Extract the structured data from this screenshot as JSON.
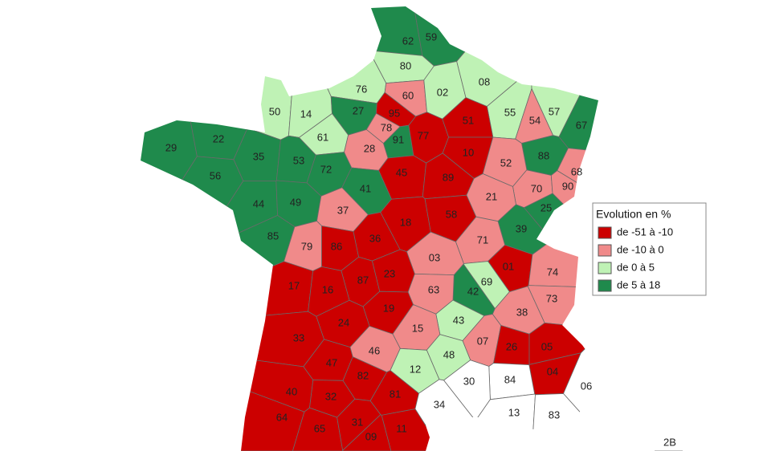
{
  "legend": {
    "title": "Evolution en %",
    "items": [
      {
        "label": "de -51 à -10",
        "color": "#cc0000"
      },
      {
        "label": "de -10 à 0",
        "color": "#f08a8a"
      },
      {
        "label": "de 0 à 5",
        "color": "#bff2b5"
      },
      {
        "label": "de 5 à 18",
        "color": "#1f8a4c"
      }
    ]
  },
  "departments": [
    {
      "code": "62",
      "color": "#1f8a4c"
    },
    {
      "code": "59",
      "color": "#1f8a4c"
    },
    {
      "code": "80",
      "color": "#bff2b5"
    },
    {
      "code": "76",
      "color": "#bff2b5"
    },
    {
      "code": "60",
      "color": "#f08a8a"
    },
    {
      "code": "02",
      "color": "#bff2b5"
    },
    {
      "code": "08",
      "color": "#bff2b5"
    },
    {
      "code": "55",
      "color": "#bff2b5"
    },
    {
      "code": "57",
      "color": "#bff2b5"
    },
    {
      "code": "54",
      "color": "#f08a8a"
    },
    {
      "code": "67",
      "color": "#1f8a4c"
    },
    {
      "code": "50",
      "color": "#bff2b5"
    },
    {
      "code": "14",
      "color": "#bff2b5"
    },
    {
      "code": "27",
      "color": "#1f8a4c"
    },
    {
      "code": "95",
      "color": "#cc0000"
    },
    {
      "code": "78",
      "color": "#f08a8a"
    },
    {
      "code": "91",
      "color": "#1f8a4c"
    },
    {
      "code": "77",
      "color": "#cc0000"
    },
    {
      "code": "51",
      "color": "#cc0000"
    },
    {
      "code": "61",
      "color": "#bff2b5"
    },
    {
      "code": "29",
      "color": "#1f8a4c"
    },
    {
      "code": "22",
      "color": "#1f8a4c"
    },
    {
      "code": "35",
      "color": "#1f8a4c"
    },
    {
      "code": "53",
      "color": "#1f8a4c"
    },
    {
      "code": "72",
      "color": "#1f8a4c"
    },
    {
      "code": "28",
      "color": "#f08a8a"
    },
    {
      "code": "10",
      "color": "#cc0000"
    },
    {
      "code": "88",
      "color": "#1f8a4c"
    },
    {
      "code": "68",
      "color": "#f08a8a"
    },
    {
      "code": "56",
      "color": "#1f8a4c"
    },
    {
      "code": "52",
      "color": "#f08a8a"
    },
    {
      "code": "45",
      "color": "#cc0000"
    },
    {
      "code": "89",
      "color": "#cc0000"
    },
    {
      "code": "70",
      "color": "#f08a8a"
    },
    {
      "code": "90",
      "color": "#f08a8a"
    },
    {
      "code": "44",
      "color": "#1f8a4c"
    },
    {
      "code": "49",
      "color": "#1f8a4c"
    },
    {
      "code": "41",
      "color": "#1f8a4c"
    },
    {
      "code": "21",
      "color": "#f08a8a"
    },
    {
      "code": "37",
      "color": "#f08a8a"
    },
    {
      "code": "18",
      "color": "#cc0000"
    },
    {
      "code": "58",
      "color": "#cc0000"
    },
    {
      "code": "25",
      "color": "#1f8a4c"
    },
    {
      "code": "39",
      "color": "#1f8a4c"
    },
    {
      "code": "85",
      "color": "#1f8a4c"
    },
    {
      "code": "79",
      "color": "#f08a8a"
    },
    {
      "code": "86",
      "color": "#cc0000"
    },
    {
      "code": "36",
      "color": "#cc0000"
    },
    {
      "code": "71",
      "color": "#f08a8a"
    },
    {
      "code": "01",
      "color": "#cc0000"
    },
    {
      "code": "74",
      "color": "#f08a8a"
    },
    {
      "code": "03",
      "color": "#f08a8a"
    },
    {
      "code": "23",
      "color": "#cc0000"
    },
    {
      "code": "87",
      "color": "#cc0000"
    },
    {
      "code": "69",
      "color": "#bff2b5"
    },
    {
      "code": "42",
      "color": "#1f8a4c"
    },
    {
      "code": "17",
      "color": "#cc0000"
    },
    {
      "code": "16",
      "color": "#cc0000"
    },
    {
      "code": "63",
      "color": "#f08a8a"
    },
    {
      "code": "73",
      "color": "#f08a8a"
    },
    {
      "code": "19",
      "color": "#cc0000"
    },
    {
      "code": "24",
      "color": "#cc0000"
    },
    {
      "code": "38",
      "color": "#f08a8a"
    },
    {
      "code": "43",
      "color": "#bff2b5"
    },
    {
      "code": "15",
      "color": "#f08a8a"
    },
    {
      "code": "33",
      "color": "#cc0000"
    },
    {
      "code": "46",
      "color": "#f08a8a"
    },
    {
      "code": "07",
      "color": "#f08a8a"
    },
    {
      "code": "26",
      "color": "#cc0000"
    },
    {
      "code": "05",
      "color": "#cc0000"
    },
    {
      "code": "48",
      "color": "#bff2b5"
    },
    {
      "code": "12",
      "color": "#bff2b5"
    },
    {
      "code": "47",
      "color": "#cc0000"
    },
    {
      "code": "04",
      "color": "#cc0000"
    },
    {
      "code": "84",
      "color": "#ffffff"
    },
    {
      "code": "30",
      "color": "#ffffff"
    },
    {
      "code": "06",
      "color": "#ffffff"
    },
    {
      "code": "82",
      "color": "#cc0000"
    },
    {
      "code": "40",
      "color": "#cc0000"
    },
    {
      "code": "32",
      "color": "#cc0000"
    },
    {
      "code": "81",
      "color": "#cc0000"
    },
    {
      "code": "34",
      "color": "#ffffff"
    },
    {
      "code": "13",
      "color": "#ffffff"
    },
    {
      "code": "83",
      "color": "#ffffff"
    },
    {
      "code": "64",
      "color": "#cc0000"
    },
    {
      "code": "65",
      "color": "#cc0000"
    },
    {
      "code": "31",
      "color": "#cc0000"
    },
    {
      "code": "11",
      "color": "#cc0000"
    },
    {
      "code": "09",
      "color": "#cc0000"
    },
    {
      "code": "2B",
      "color": "#ffffff"
    }
  ]
}
